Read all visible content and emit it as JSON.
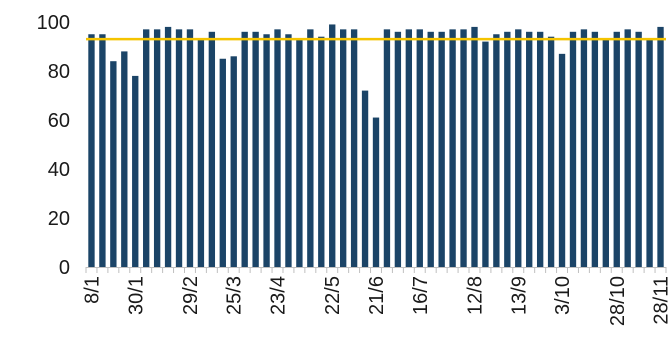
{
  "chart_data": {
    "type": "bar",
    "title": "",
    "xlabel": "",
    "ylabel": "",
    "ylim": [
      0,
      100
    ],
    "yticks": [
      0,
      20,
      40,
      60,
      80,
      100
    ],
    "grid": false,
    "legend": "none",
    "x_tick_labels": [
      "8/1",
      "30/1",
      "29/2",
      "25/3",
      "23/4",
      "22/5",
      "21/6",
      "16/7",
      "12/8",
      "13/9",
      "3/10",
      "28/10",
      "28/11"
    ],
    "series": [
      {
        "values": [
          95,
          95,
          84,
          88,
          78,
          97,
          97,
          98,
          97,
          97,
          93,
          96,
          85,
          86,
          96,
          96,
          95,
          97,
          95,
          93,
          97,
          94,
          99,
          97,
          97,
          72,
          61,
          97,
          96,
          97,
          97,
          96,
          96,
          97,
          97,
          98,
          92,
          95,
          96,
          97,
          96,
          96,
          94,
          87,
          96,
          97,
          96,
          93,
          96,
          97,
          96,
          93,
          98
        ]
      }
    ],
    "reference_line": {
      "value": 93
    },
    "colors": {
      "bar": "#1b4467",
      "reference_line": "#f5c400",
      "axis": "#bfbfbf",
      "text": "#1a1a1a"
    }
  }
}
